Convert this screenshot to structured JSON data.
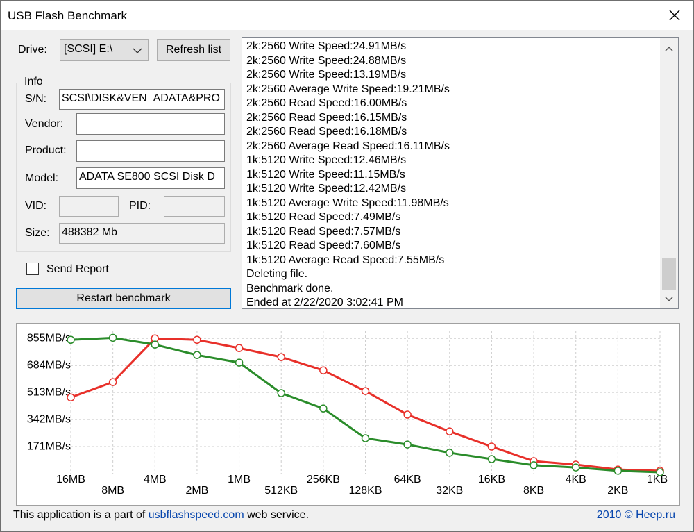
{
  "window": {
    "title": "USB Flash Benchmark"
  },
  "drive": {
    "label": "Drive:",
    "selected": "[SCSI] E:\\",
    "refresh_button": "Refresh list"
  },
  "info": {
    "title": "Info",
    "sn_label": "S/N:",
    "sn_value": "SCSI\\DISK&VEN_ADATA&PRO",
    "vendor_label": "Vendor:",
    "product_label": "Product:",
    "model_label": "Model:",
    "model_value": "ADATA SE800 SCSI Disk D",
    "vid_label": "VID:",
    "pid_label": "PID:",
    "size_label": "Size:",
    "size_value": "488382 Mb"
  },
  "send_report": "Send Report",
  "restart_button": "Restart benchmark",
  "log": [
    "2k:2560 Write Speed:24.91MB/s",
    "2k:2560 Write Speed:24.88MB/s",
    "2k:2560 Write Speed:13.19MB/s",
    "2k:2560 Average Write Speed:19.21MB/s",
    "2k:2560 Read Speed:16.00MB/s",
    "2k:2560 Read Speed:16.15MB/s",
    "2k:2560 Read Speed:16.18MB/s",
    "2k:2560 Average Read Speed:16.11MB/s",
    "1k:5120 Write Speed:12.46MB/s",
    "1k:5120 Write Speed:11.15MB/s",
    "1k:5120 Write Speed:12.42MB/s",
    "1k:5120 Average Write Speed:11.98MB/s",
    "1k:5120 Read Speed:7.49MB/s",
    "1k:5120 Read Speed:7.57MB/s",
    "1k:5120 Read Speed:7.60MB/s",
    "1k:5120 Average Read Speed:7.55MB/s",
    "Deleting file.",
    "Benchmark done.",
    "Ended at 2/22/2020 3:02:41 PM"
  ],
  "footer": {
    "text_before": "This application is a part of",
    "link": "usbflashspeed.com",
    "text_after": "web service.",
    "copyright": "2010 © Heep.ru"
  },
  "chart_data": {
    "type": "line",
    "categories": [
      "16MB",
      "8MB",
      "4MB",
      "2MB",
      "1MB",
      "512KB",
      "256KB",
      "128KB",
      "64KB",
      "32KB",
      "16KB",
      "8KB",
      "4KB",
      "2KB",
      "1KB"
    ],
    "series": [
      {
        "color": "#e8302a",
        "values": [
          482,
          579,
          855,
          846,
          794,
          737,
          653,
          522,
          373,
          267,
          171,
          79,
          57,
          26,
          18
        ]
      },
      {
        "color": "#2a8c2a",
        "values": [
          846,
          859,
          816,
          750,
          702,
          509,
          412,
          224,
          184,
          132,
          92,
          53,
          39,
          18,
          9
        ]
      }
    ],
    "ylim": [
      0,
      900
    ],
    "yticks": [
      {
        "value": 171,
        "label": "171MB/s"
      },
      {
        "value": 342,
        "label": "342MB/s"
      },
      {
        "value": 513,
        "label": "513MB/s"
      },
      {
        "value": 684,
        "label": "684MB/s"
      },
      {
        "value": 855,
        "label": "855MB/s"
      }
    ],
    "grid": true
  }
}
